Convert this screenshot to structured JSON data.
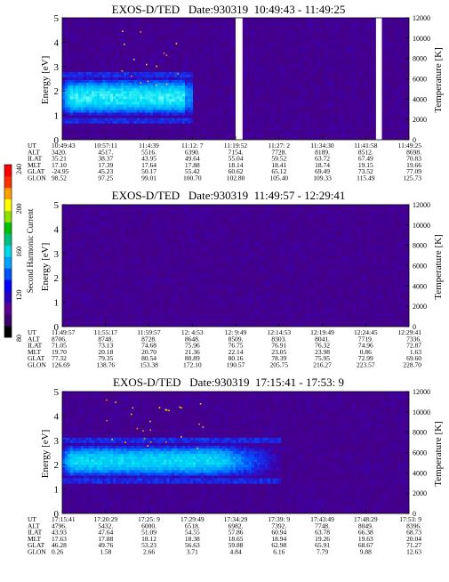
{
  "colorbar": {
    "label": "Second Harmonic Current",
    "ticks": [
      "80",
      "120",
      "160",
      "200",
      "240"
    ],
    "colors": [
      "#000000",
      "#3b006b",
      "#5a0090",
      "#2a00c0",
      "#0000ff",
      "#0050ff",
      "#00a0ff",
      "#00d8e8",
      "#00c080",
      "#00c000",
      "#90e000",
      "#ffff00",
      "#ffa000",
      "#ff3000",
      "#ff0000"
    ]
  },
  "chart_data": [
    {
      "type": "heatmap",
      "title": "EXOS-D/TED   Date:930319  10:49:43 - 11:49:25",
      "ylabel": "Energy [eV]",
      "y2label": "Temperature [K]",
      "ylim": [
        0,
        5
      ],
      "yticks": [
        "0",
        "1",
        "2",
        "3",
        "4",
        "5"
      ],
      "y2lim": [
        0,
        12000
      ],
      "y2ticks": [
        "0",
        "2000",
        "4000",
        "6000",
        "8000",
        "10000",
        "12000"
      ],
      "background_color": "#45008a",
      "features": {
        "band": {
          "t_start": 0.0,
          "t_end": 0.37,
          "center_ev": 1.75,
          "halfwidth_ev": 0.85,
          "peak_level": 0.62,
          "edge": "sharp"
        },
        "dots": {
          "t_start": 0.17,
          "t_end": 0.34,
          "ev_start": 2.2,
          "ev_end": 4.5,
          "count": 16
        },
        "gaps": [
          [
            0.5,
            0.52
          ],
          [
            0.905,
            0.922
          ]
        ]
      },
      "orbit_rows": [
        "UT",
        "ALT",
        "ILAT",
        "MLT",
        "GLAT",
        "GLON"
      ],
      "orbit_columns": [
        [
          "10:49:43",
          "3420.",
          "35.21",
          "17.10",
          "-24.95",
          "98.52"
        ],
        [
          "10:57:11",
          "4517.",
          "38.37",
          "17.39",
          "45.23",
          "97.25"
        ],
        [
          "11:4:39",
          "5516.",
          "43.95",
          "17.64",
          "50.17",
          "99.01"
        ],
        [
          "11:12: 7",
          "6390.",
          "49.64",
          "17.88",
          "55.42",
          "100.70"
        ],
        [
          "11:19:52",
          "7154.",
          "55.04",
          "18.14",
          "60.62",
          "102.80"
        ],
        [
          "11:27: 2",
          "7728.",
          "59.52",
          "18.41",
          "65.12",
          "105.40"
        ],
        [
          "11:34:30",
          "8189.",
          "63.72",
          "18.74",
          "69.49",
          "109.33"
        ],
        [
          "11:41:58",
          "8512.",
          "67.49",
          "19.15",
          "73.52",
          "115.49"
        ],
        [
          "11:49:25",
          "8698.",
          "70.83",
          "19.66",
          "77.09",
          "125.73"
        ]
      ]
    },
    {
      "type": "heatmap",
      "title": "EXOS-D/TED   Date:930319  11:49:57 - 12:29:41",
      "ylabel": "Energy [eV]",
      "y2label": "Temperature [K]",
      "ylim": [
        0,
        5
      ],
      "yticks": [
        "0",
        "1",
        "2",
        "3",
        "4",
        "5"
      ],
      "y2lim": [
        0,
        12000
      ],
      "y2ticks": [
        "0",
        "2000",
        "4000",
        "6000",
        "8000",
        "10000",
        "12000"
      ],
      "background_color": "#45008a",
      "features": {},
      "orbit_rows": [
        "UT",
        "ALT",
        "ILAT",
        "MLT",
        "GLAT",
        "GLON"
      ],
      "orbit_columns": [
        [
          "11:49:57",
          "8706.",
          "71.05",
          "19.70",
          "77.32",
          "126.69"
        ],
        [
          "11:55:17",
          "8748.",
          "73.13",
          "20.18",
          "79.35",
          "138.76"
        ],
        [
          "11:59:57",
          "8728.",
          "74.68",
          "20.70",
          "80.54",
          "153.38"
        ],
        [
          "12: 4:53",
          "8648.",
          "75.96",
          "21.36",
          "80.89",
          "172.10"
        ],
        [
          "12: 9:49",
          "8509.",
          "76.75",
          "22.14",
          "80.16",
          "190.57"
        ],
        [
          "12:14:53",
          "8303.",
          "76.91",
          "23.05",
          "78.39",
          "205.75"
        ],
        [
          "12:19:49",
          "8041.",
          "76.32",
          "23.98",
          "75.95",
          "216.27"
        ],
        [
          "12:24:45",
          "7719.",
          "74.96",
          "0.86",
          "72.99",
          "223.57"
        ],
        [
          "12:29:41",
          "7336.",
          "72.87",
          "1.63",
          "69.60",
          "228.70"
        ]
      ]
    },
    {
      "type": "heatmap",
      "title": "EXOS-D/TED   Date:930319  17:15:41 - 17:53: 9",
      "ylabel": "Energy [eV]",
      "y2label": "Temperature [K]",
      "ylim": [
        0,
        5
      ],
      "yticks": [
        "0",
        "1",
        "2",
        "3",
        "4",
        "5"
      ],
      "y2lim": [
        0,
        12000
      ],
      "y2ticks": [
        "0",
        "2000",
        "4000",
        "6000",
        "8000",
        "10000",
        "12000"
      ],
      "background_color": "#45008a",
      "features": {
        "band": {
          "t_start": 0.0,
          "t_end": 0.45,
          "center_ev": 2.15,
          "halfwidth_ev": 0.75,
          "peak_level": 0.55,
          "edge": "fade"
        },
        "dots": {
          "t_start": 0.12,
          "t_end": 0.42,
          "ev_start": 2.7,
          "ev_end": 4.7,
          "count": 26
        },
        "gaps": []
      },
      "orbit_rows": [
        "UT",
        "ALT",
        "ILAT",
        "MLT",
        "GLAT",
        "GLON"
      ],
      "orbit_columns": [
        [
          "17:15:41",
          "4796.",
          "43.93",
          "17.63",
          "46.28",
          "0.26"
        ],
        [
          "17:20:29",
          "5432.",
          "47.64",
          "17.88",
          "49.76",
          "1.58"
        ],
        [
          "17:25: 9",
          "6000.",
          "51.09",
          "18.12",
          "53.23",
          "2.66"
        ],
        [
          "17:29:49",
          "6518.",
          "54.55",
          "18.38",
          "56.63",
          "3.71"
        ],
        [
          "17:34:29",
          "6982.",
          "57.86",
          "18.65",
          "59.88",
          "4.84"
        ],
        [
          "17:39: 9",
          "7392.",
          "60.94",
          "18.94",
          "62.98",
          "6.16"
        ],
        [
          "17:43:49",
          "7748.",
          "63.78",
          "19.26",
          "65.91",
          "7.79"
        ],
        [
          "17:48:29",
          "8049.",
          "66.38",
          "19.63",
          "68.67",
          "9.88"
        ],
        [
          "17:53: 9",
          "8396.",
          "68.73",
          "20.04",
          "71.27",
          "12.63"
        ]
      ]
    }
  ]
}
